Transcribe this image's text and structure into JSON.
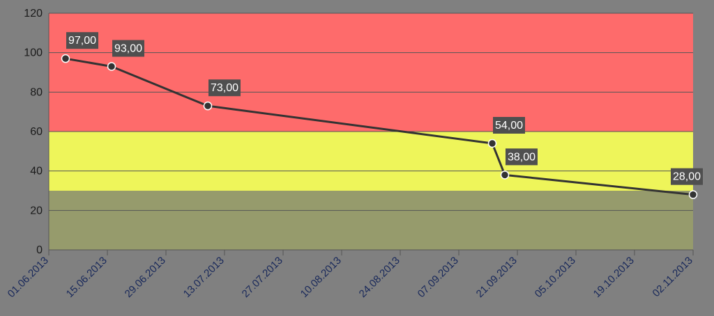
{
  "chart_data": {
    "type": "line",
    "title": "",
    "xlabel": "",
    "ylabel": "",
    "ylim": [
      0,
      120
    ],
    "yticks": [
      0,
      20,
      40,
      60,
      80,
      100,
      120
    ],
    "y_tick_labels": [
      "0",
      "20",
      "40",
      "60",
      "80",
      "100",
      "120"
    ],
    "xlim": [
      "2013-06-01",
      "2013-11-02"
    ],
    "xticks": [
      "2013-06-01",
      "2013-06-15",
      "2013-06-29",
      "2013-07-13",
      "2013-07-27",
      "2013-08-10",
      "2013-08-24",
      "2013-09-07",
      "2013-09-21",
      "2013-10-05",
      "2013-10-19",
      "2013-11-02"
    ],
    "x_tick_labels": [
      "01.06.2013",
      "15.06.2013",
      "29.06.2013",
      "13.07.2013",
      "27.07.2013",
      "10.08.2013",
      "24.08.2013",
      "07.09.2013",
      "21.09.2013",
      "05.10.2013",
      "19.10.2013",
      "02.11.2013"
    ],
    "grid": "horizontal",
    "legend": "none",
    "bands": [
      {
        "from": 0,
        "to": 30,
        "color": "#969b6c"
      },
      {
        "from": 30,
        "to": 60,
        "color": "#eef55a"
      },
      {
        "from": 60,
        "to": 120,
        "color": "#fe6b6b"
      }
    ],
    "series": [
      {
        "color": "#333333",
        "points": [
          {
            "x": "2013-06-05",
            "y": 97,
            "label": "97,00"
          },
          {
            "x": "2013-06-16",
            "y": 93,
            "label": "93,00"
          },
          {
            "x": "2013-07-09",
            "y": 73,
            "label": "73,00"
          },
          {
            "x": "2013-09-15",
            "y": 54,
            "label": "54,00"
          },
          {
            "x": "2013-09-18",
            "y": 38,
            "label": "38,00"
          },
          {
            "x": "2013-11-02",
            "y": 28,
            "label": "28,00"
          }
        ]
      }
    ]
  }
}
